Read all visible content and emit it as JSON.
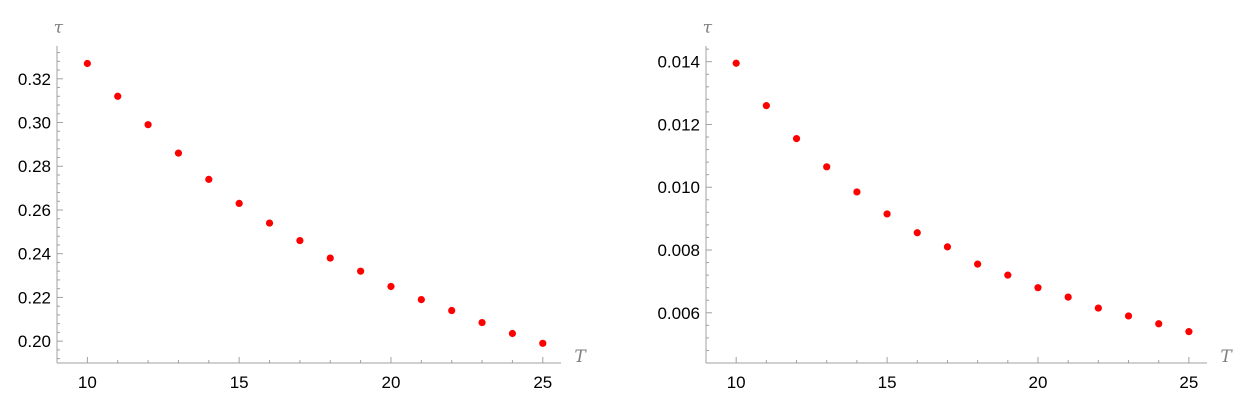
{
  "chart_data": [
    {
      "type": "scatter",
      "title": "",
      "xlabel": "T",
      "ylabel": "τ",
      "xlim": [
        9,
        25.6
      ],
      "ylim": [
        0.19,
        0.335
      ],
      "x_ticks": [
        10,
        15,
        20,
        25
      ],
      "x_tick_labels": [
        "10",
        "15",
        "20",
        "25"
      ],
      "y_ticks": [
        0.2,
        0.22,
        0.24,
        0.26,
        0.28,
        0.3,
        0.32
      ],
      "y_tick_labels": [
        "0.20",
        "0.22",
        "0.24",
        "0.26",
        "0.28",
        "0.30",
        "0.32"
      ],
      "grid": false,
      "marker_color": "#ff0000",
      "x": [
        10,
        11,
        12,
        13,
        14,
        15,
        16,
        17,
        18,
        19,
        20,
        21,
        22,
        23,
        24,
        25
      ],
      "y": [
        0.327,
        0.312,
        0.299,
        0.286,
        0.274,
        0.263,
        0.254,
        0.246,
        0.238,
        0.232,
        0.225,
        0.219,
        0.214,
        0.2085,
        0.2035,
        0.199
      ]
    },
    {
      "type": "scatter",
      "title": "",
      "xlabel": "T",
      "ylabel": "τ",
      "xlim": [
        9,
        25.6
      ],
      "ylim": [
        0.0044,
        0.0145
      ],
      "x_ticks": [
        10,
        15,
        20,
        25
      ],
      "x_tick_labels": [
        "10",
        "15",
        "20",
        "25"
      ],
      "y_ticks": [
        0.006,
        0.008,
        0.01,
        0.012,
        0.014
      ],
      "y_tick_labels": [
        "0.006",
        "0.008",
        "0.010",
        "0.012",
        "0.014"
      ],
      "grid": false,
      "marker_color": "#ff0000",
      "x": [
        10,
        11,
        12,
        13,
        14,
        15,
        16,
        17,
        18,
        19,
        20,
        21,
        22,
        23,
        24,
        25
      ],
      "y": [
        0.01395,
        0.0126,
        0.01155,
        0.01065,
        0.00985,
        0.00915,
        0.00855,
        0.0081,
        0.00755,
        0.0072,
        0.0068,
        0.0065,
        0.00615,
        0.0059,
        0.00565,
        0.0054
      ]
    }
  ]
}
